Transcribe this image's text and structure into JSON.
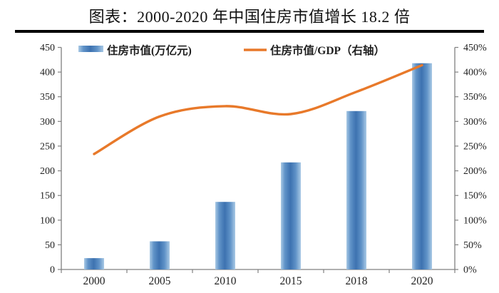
{
  "title": "图表：2000-2020 年中国住房市值增长 18.2 倍",
  "chart_data": {
    "type": "bar",
    "subtype": "combo-bar-line-dual-axis",
    "title": "图表：2000-2020 年中国住房市值增长 18.2 倍",
    "categories": [
      "2000",
      "2005",
      "2010",
      "2015",
      "2018",
      "2020"
    ],
    "series": [
      {
        "name": "住房市值(万亿元)",
        "type": "bar",
        "axis": "left",
        "values": [
          23,
          57,
          137,
          217,
          321,
          418
        ]
      },
      {
        "name": "住房市值/GDP（右轴）",
        "type": "line",
        "axis": "right",
        "values": [
          234,
          310,
          331,
          315,
          360,
          414
        ]
      }
    ],
    "left_axis": {
      "min": 0,
      "max": 450,
      "step": 50,
      "tick_labels": [
        "0",
        "50",
        "100",
        "150",
        "200",
        "250",
        "300",
        "350",
        "400",
        "450"
      ]
    },
    "right_axis": {
      "min": 0,
      "max": 450,
      "step": 50,
      "tick_labels": [
        "0%",
        "50%",
        "100%",
        "150%",
        "200%",
        "250%",
        "300%",
        "350%",
        "400%",
        "450%"
      ]
    },
    "legend": {
      "position": "top",
      "items": [
        {
          "label": "住房市值(万亿元)",
          "swatch": "bar"
        },
        {
          "label": "住房市值/GDP（右轴）",
          "swatch": "line"
        }
      ]
    },
    "grid": false,
    "colors": {
      "bar_edge_light": "#a9c9e5",
      "bar_mid": "#6093c8",
      "bar_dark": "#3d72b0",
      "line": "#e8792a",
      "axis": "#808080",
      "text": "#1f1f1f",
      "title_rule": "#000000"
    }
  }
}
